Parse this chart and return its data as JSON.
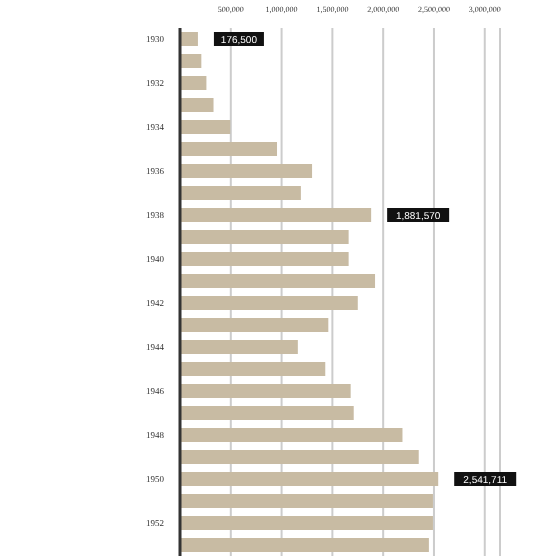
{
  "chart_data": {
    "type": "bar",
    "orientation": "horizontal",
    "categories": [
      "1930",
      null,
      "1932",
      null,
      "1934",
      null,
      "1936",
      null,
      "1938",
      null,
      "1940",
      null,
      "1942",
      null,
      "1944",
      null,
      "1946",
      null,
      "1948",
      null,
      "1950",
      null,
      "1952",
      null
    ],
    "values": [
      176500,
      210000,
      260000,
      330000,
      495000,
      955000,
      1300000,
      1190000,
      1881570,
      1660000,
      1660000,
      1920000,
      1750000,
      1460000,
      1160000,
      1430000,
      1680000,
      1710000,
      2190000,
      2350000,
      2541711,
      2490000,
      2490000,
      2450000
    ],
    "value_labels": [
      "176,500",
      null,
      null,
      null,
      null,
      null,
      null,
      null,
      "1,881,570",
      null,
      null,
      null,
      null,
      null,
      null,
      null,
      null,
      null,
      null,
      null,
      "2,541,711",
      null,
      null,
      null
    ],
    "color": "#c8bba3",
    "xlim": [
      0,
      3150000
    ],
    "xticks": [
      {
        "value": 500000,
        "label": "500,000"
      },
      {
        "value": 1000000,
        "label": "1,000,000"
      },
      {
        "value": 1500000,
        "label": "1,500,000"
      },
      {
        "value": 2000000,
        "label": "2,000,000"
      },
      {
        "value": 2500000,
        "label": "2,500,000"
      },
      {
        "value": 3000000,
        "label": "3,000,000"
      }
    ],
    "grid": "x"
  }
}
